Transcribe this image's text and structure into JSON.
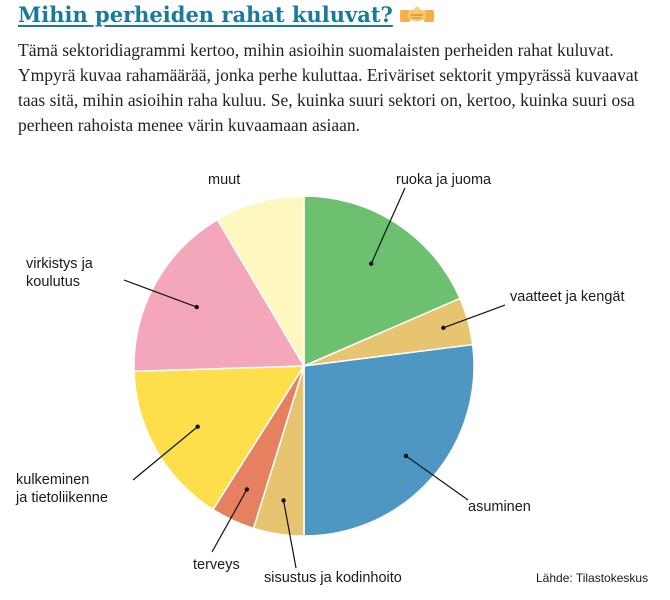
{
  "header": {
    "title": "Mihin perheiden rahat kuluvat?",
    "icon": "money-handshake-icon"
  },
  "intro": "Tämä sektoridiagrammi kertoo, mihin asioihin suomalaisten perheiden rahat kuluvat. Ympyrä kuvaa rahamäärää, jonka perhe kuluttaa. Eriväriset sektorit ympyrässä kuvaavat taas sitä, mihin asioihin raha kuluu. Se, kuinka suuri sektori on, kertoo, kuinka suuri osa perheen rahoista menee värin kuvaamaan asiaan.",
  "source": "Lähde: Tilastokeskus",
  "chart_data": {
    "type": "pie",
    "title": "",
    "start_angle_deg": 0,
    "direction": "clockwise",
    "slices": [
      {
        "label": [
          "ruoka ja juoma"
        ],
        "value": 18.5,
        "color": "#6cc070"
      },
      {
        "label": [
          "vaatteet ja kengät"
        ],
        "value": 4.5,
        "color": "#e7c470"
      },
      {
        "label": [
          "asuminen"
        ],
        "value": 27.0,
        "color": "#4d97c2"
      },
      {
        "label": [
          "sisustus ja kodinhoito"
        ],
        "value": 4.8,
        "color": "#e7c470"
      },
      {
        "label": [
          "terveys"
        ],
        "value": 4.2,
        "color": "#e58061"
      },
      {
        "label": [
          "kulkeminen",
          "ja tietoliikenne"
        ],
        "value": 15.5,
        "color": "#fcdf4a"
      },
      {
        "label": [
          "virkistys ja",
          "koulutus"
        ],
        "value": 17.0,
        "color": "#f4a7bb"
      },
      {
        "label": [
          "muut"
        ],
        "value": 8.5,
        "color": "#fef7c0"
      }
    ]
  }
}
